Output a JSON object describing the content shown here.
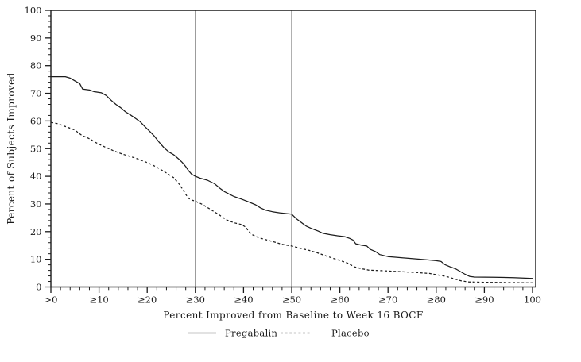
{
  "chart_data": {
    "type": "line",
    "title": "",
    "xlabel": "Percent Improved from Baseline to Week 16 BOCF",
    "ylabel": "Percent of Subjects Improved",
    "xlim": [
      0,
      100
    ],
    "ylim": [
      0,
      100
    ],
    "grid": false,
    "legend_position": "bottom",
    "x_major_ticks": [
      0,
      10,
      20,
      30,
      40,
      50,
      60,
      70,
      80,
      90,
      100
    ],
    "x_tick_labels": [
      ">0",
      "≥10",
      "≥20",
      "≥30",
      "≥40",
      "≥50",
      "≥60",
      "≥70",
      "≥80",
      "≥90",
      "100"
    ],
    "y_major_ticks": [
      0,
      10,
      20,
      30,
      40,
      50,
      60,
      70,
      80,
      90,
      100
    ],
    "y_tick_labels": [
      "0",
      "10",
      "20",
      "30",
      "40",
      "50",
      "60",
      "70",
      "80",
      "90",
      "100"
    ],
    "minor_tick_step": 2,
    "reference_lines_x": [
      30,
      50
    ],
    "series": [
      {
        "name": "Pregabalin",
        "style": "solid",
        "color": "#1c1c1c",
        "points": [
          [
            0,
            76
          ],
          [
            3,
            76
          ],
          [
            4,
            75.5
          ],
          [
            5,
            74.5
          ],
          [
            6,
            73.5
          ],
          [
            6.6,
            71.5
          ],
          [
            8,
            71.2
          ],
          [
            9,
            70.6
          ],
          [
            10.5,
            70.2
          ],
          [
            11.5,
            69.2
          ],
          [
            12.5,
            67.5
          ],
          [
            13.5,
            66
          ],
          [
            14.5,
            64.8
          ],
          [
            15.5,
            63.3
          ],
          [
            16.5,
            62.2
          ],
          [
            17.5,
            61
          ],
          [
            18.5,
            59.8
          ],
          [
            19.5,
            58
          ],
          [
            20.5,
            56.3
          ],
          [
            21.5,
            54.5
          ],
          [
            22.5,
            52.3
          ],
          [
            23.5,
            50.3
          ],
          [
            24.5,
            48.8
          ],
          [
            25.5,
            47.8
          ],
          [
            26.5,
            46.3
          ],
          [
            27.3,
            45
          ],
          [
            28,
            43.5
          ],
          [
            28.6,
            42
          ],
          [
            29.2,
            40.8
          ],
          [
            30,
            40
          ],
          [
            31,
            39.3
          ],
          [
            32.5,
            38.6
          ],
          [
            34,
            37.3
          ],
          [
            35,
            35.8
          ],
          [
            36,
            34.5
          ],
          [
            37,
            33.6
          ],
          [
            38,
            32.7
          ],
          [
            39.5,
            31.8
          ],
          [
            41,
            30.8
          ],
          [
            42.5,
            29.7
          ],
          [
            43.5,
            28.6
          ],
          [
            44.5,
            27.8
          ],
          [
            46,
            27.2
          ],
          [
            47.5,
            26.8
          ],
          [
            49,
            26.5
          ],
          [
            50,
            26.3
          ],
          [
            51,
            24.6
          ],
          [
            52,
            23.3
          ],
          [
            53,
            22
          ],
          [
            54,
            21.2
          ],
          [
            55.5,
            20.2
          ],
          [
            56.5,
            19.4
          ],
          [
            58,
            18.9
          ],
          [
            59.5,
            18.5
          ],
          [
            61,
            18.2
          ],
          [
            62,
            17.6
          ],
          [
            62.7,
            17
          ],
          [
            63.3,
            15.6
          ],
          [
            64.5,
            15.1
          ],
          [
            65.6,
            14.8
          ],
          [
            66.3,
            13.6
          ],
          [
            67.5,
            12.7
          ],
          [
            68.3,
            11.7
          ],
          [
            70,
            11
          ],
          [
            72,
            10.7
          ],
          [
            74,
            10.4
          ],
          [
            76,
            10.1
          ],
          [
            78,
            9.8
          ],
          [
            80,
            9.5
          ],
          [
            81,
            9.2
          ],
          [
            81.8,
            8.1
          ],
          [
            83,
            7.2
          ],
          [
            84,
            6.6
          ],
          [
            85,
            5.6
          ],
          [
            86,
            4.6
          ],
          [
            87,
            3.8
          ],
          [
            88,
            3.6
          ],
          [
            92,
            3.5
          ],
          [
            96,
            3.4
          ],
          [
            98,
            3.2
          ],
          [
            100,
            3.1
          ]
        ]
      },
      {
        "name": "Placebo",
        "style": "dashed",
        "color": "#1c1c1c",
        "points": [
          [
            0,
            59.5
          ],
          [
            1.5,
            59
          ],
          [
            2.5,
            58.3
          ],
          [
            4,
            57.4
          ],
          [
            5,
            56.7
          ],
          [
            5.8,
            55.6
          ],
          [
            6.6,
            54.6
          ],
          [
            7.4,
            54.1
          ],
          [
            8.3,
            53.3
          ],
          [
            9.1,
            52.4
          ],
          [
            10,
            51.6
          ],
          [
            11.6,
            50.3
          ],
          [
            13.2,
            49.1
          ],
          [
            14.9,
            48
          ],
          [
            16.4,
            47.2
          ],
          [
            18,
            46.3
          ],
          [
            19.5,
            45.3
          ],
          [
            21,
            44.2
          ],
          [
            22.5,
            42.8
          ],
          [
            24,
            41.2
          ],
          [
            25.5,
            39.5
          ],
          [
            26.5,
            37.5
          ],
          [
            27.3,
            35.5
          ],
          [
            28,
            33.5
          ],
          [
            28.6,
            32
          ],
          [
            29.3,
            31.4
          ],
          [
            30,
            31
          ],
          [
            31.4,
            29.9
          ],
          [
            33.1,
            28.1
          ],
          [
            35,
            26
          ],
          [
            36.4,
            24.3
          ],
          [
            38,
            23.2
          ],
          [
            39.5,
            22.6
          ],
          [
            40.5,
            21.6
          ],
          [
            41,
            20.2
          ],
          [
            41.8,
            18.9
          ],
          [
            43,
            17.9
          ],
          [
            44.6,
            17.1
          ],
          [
            46.3,
            16.3
          ],
          [
            48,
            15.4
          ],
          [
            50,
            14.8
          ],
          [
            52,
            13.9
          ],
          [
            53.7,
            13.2
          ],
          [
            55.4,
            12.3
          ],
          [
            57,
            11.3
          ],
          [
            58.7,
            10.3
          ],
          [
            60.3,
            9.4
          ],
          [
            61.5,
            8.7
          ],
          [
            63,
            7.3
          ],
          [
            64.5,
            6.6
          ],
          [
            66,
            6.1
          ],
          [
            68.6,
            5.9
          ],
          [
            72,
            5.6
          ],
          [
            75.2,
            5.3
          ],
          [
            78.6,
            4.9
          ],
          [
            80.2,
            4.4
          ],
          [
            81.9,
            3.9
          ],
          [
            83.5,
            3.1
          ],
          [
            85.2,
            2.2
          ],
          [
            86.8,
            1.8
          ],
          [
            90,
            1.7
          ],
          [
            94,
            1.6
          ],
          [
            100,
            1.5
          ]
        ]
      }
    ]
  },
  "colors": {
    "background": "#ffffff",
    "axis": "#1a1a1a",
    "curve": "#1c1c1c",
    "reference_line": "#9c9c9c"
  }
}
